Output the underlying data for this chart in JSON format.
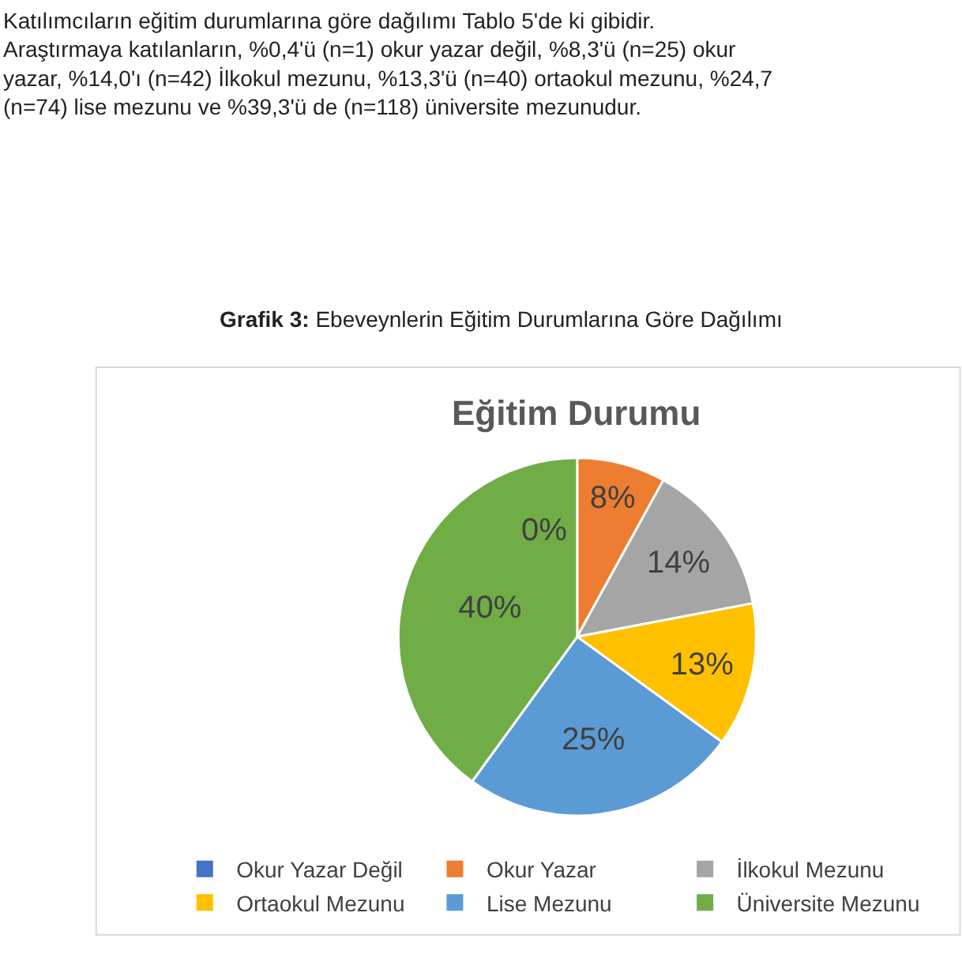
{
  "chart_data": {
    "type": "pie",
    "title": "Eğitim Durumu",
    "subtitle": "Grafik 3: Ebeveynlerin Eğitim Durumlarına Göre Dağılımı",
    "annotations": [
      "Katılımcıların eğitim durumlarına göre dağılımı Tablo 5'de ki gibidir.\nAraştırmaya katılanların, %0,4'ü (n=1) okur yazar değil, %8,3'ü (n=25) okur\nyazar, %14,0'ı (n=42) İlkokul mezunu, %13,3'ü (n=40) ortaokul mezunu, %24,7\n(n=74) lise mezunu ve %39,3'ü de (n=118) üniversite mezunudur."
    ],
    "categories": [
      "Okur Yazar Değil",
      "Okur Yazar",
      "İlkokul Mezunu",
      "Ortaokul Mezunu",
      "Lise Mezunu",
      "Üniversite Mezunu"
    ],
    "values": [
      0,
      8,
      14,
      13,
      25,
      40
    ],
    "colors": [
      "#4472c4",
      "#ed7d31",
      "#a5a5a5",
      "#ffc000",
      "#5b9bd5",
      "#70ad47"
    ],
    "value_labels": [
      "0%",
      "8%",
      "14%",
      "13%",
      "25%",
      "40%"
    ],
    "legend": "bottom"
  }
}
